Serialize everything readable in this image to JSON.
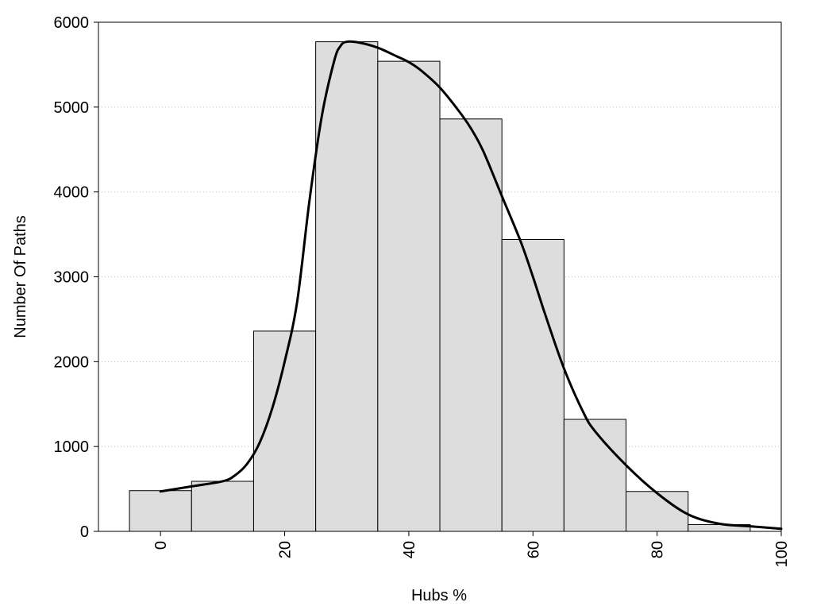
{
  "chart_data": {
    "type": "bar",
    "title": "",
    "xlabel": "Hubs %",
    "ylabel": "Number Of Paths",
    "xlim": [
      -10,
      100
    ],
    "ylim": [
      0,
      6000
    ],
    "x_ticks": [
      0,
      20,
      40,
      60,
      80,
      100
    ],
    "y_ticks": [
      0,
      1000,
      2000,
      3000,
      4000,
      5000,
      6000
    ],
    "grid": "horizontal dotted",
    "legend": "none",
    "bar_width": 10,
    "bars": [
      {
        "center": 0,
        "value": 480
      },
      {
        "center": 10,
        "value": 590
      },
      {
        "center": 20,
        "value": 2360
      },
      {
        "center": 30,
        "value": 5770
      },
      {
        "center": 40,
        "value": 5540
      },
      {
        "center": 50,
        "value": 4860
      },
      {
        "center": 60,
        "value": 3440
      },
      {
        "center": 70,
        "value": 1320
      },
      {
        "center": 80,
        "value": 470
      },
      {
        "center": 90,
        "value": 80
      }
    ],
    "density_curve": {
      "x": [
        0,
        5,
        10,
        12,
        14,
        16,
        18,
        20,
        22,
        24,
        26,
        28,
        29,
        30,
        32,
        35,
        38,
        40,
        42,
        45,
        48,
        50,
        52,
        55,
        58,
        60,
        62,
        65,
        68,
        70,
        75,
        80,
        85,
        90,
        95,
        100
      ],
      "y": [
        470,
        530,
        590,
        660,
        800,
        1050,
        1450,
        2000,
        2700,
        3900,
        4900,
        5550,
        5720,
        5770,
        5760,
        5700,
        5600,
        5530,
        5430,
        5230,
        4960,
        4750,
        4480,
        3950,
        3420,
        3000,
        2550,
        1920,
        1420,
        1180,
        780,
        450,
        200,
        90,
        60,
        30
      ]
    },
    "colors": {
      "bar_fill": "#dddddd",
      "bar_stroke": "#000000",
      "curve": "#000000",
      "grid": "#bbbbbb"
    }
  }
}
